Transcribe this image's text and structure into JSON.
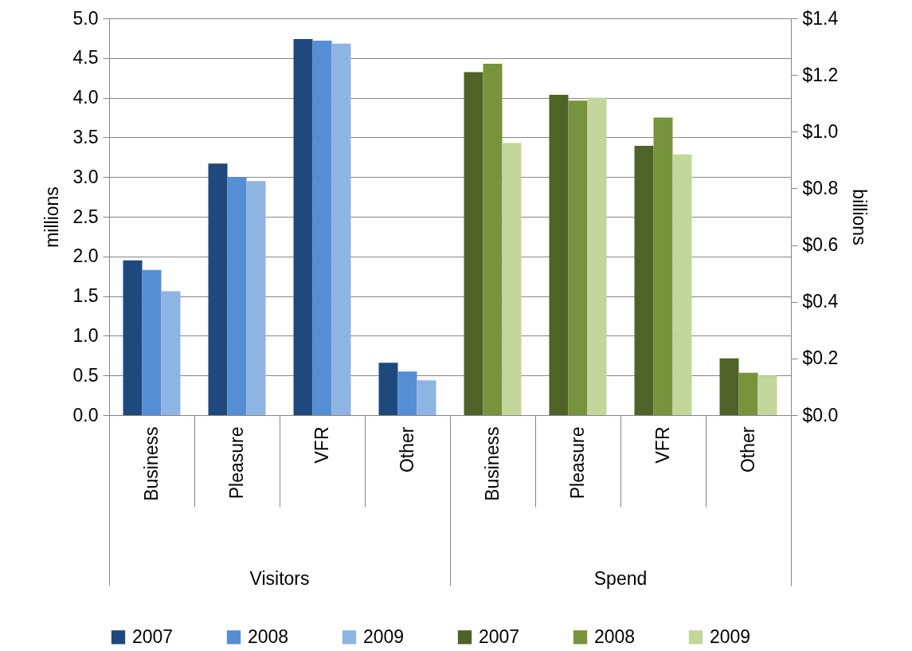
{
  "chart_data": {
    "type": "bar",
    "categories": [
      "Business",
      "Pleasure",
      "VFR",
      "Other",
      "Business",
      "Pleasure",
      "VFR",
      "Other"
    ],
    "series": [
      {
        "name": "2007",
        "color": "#1f497d",
        "values": [
          1.95,
          3.17,
          4.74,
          0.66,
          null,
          null,
          null,
          null
        ]
      },
      {
        "name": "2008",
        "color": "#558ed5",
        "values": [
          1.83,
          3.0,
          4.72,
          0.55,
          null,
          null,
          null,
          null
        ]
      },
      {
        "name": "2009",
        "color": "#8eb4e3",
        "values": [
          1.56,
          2.95,
          4.68,
          0.44,
          null,
          null,
          null,
          null
        ]
      },
      {
        "name": "2007",
        "color": "#4f6228",
        "axis": "y2",
        "values": [
          null,
          null,
          null,
          null,
          1.21,
          1.13,
          0.95,
          0.2
        ]
      },
      {
        "name": "2008",
        "color": "#77933c",
        "axis": "y2",
        "values": [
          null,
          null,
          null,
          null,
          1.24,
          1.11,
          1.05,
          0.15
        ]
      },
      {
        "name": "2009",
        "color": "#c3d69b",
        "axis": "y2",
        "values": [
          null,
          null,
          null,
          null,
          0.96,
          1.12,
          0.92,
          0.14
        ]
      }
    ],
    "ylabel": "millions",
    "y2label": "billions",
    "ylim": [
      0,
      5
    ],
    "yticks": [
      {
        "value": 0,
        "label": "0.0"
      },
      {
        "value": 0.5,
        "label": "0.5"
      },
      {
        "value": 1,
        "label": "1.0"
      },
      {
        "value": 1.5,
        "label": "1.5"
      },
      {
        "value": 2,
        "label": "2.0"
      },
      {
        "value": 2.5,
        "label": "2.5"
      },
      {
        "value": 3,
        "label": "3.0"
      },
      {
        "value": 3.5,
        "label": "3.5"
      },
      {
        "value": 4,
        "label": "4.0"
      },
      {
        "value": 4.5,
        "label": "4.5"
      },
      {
        "value": 5,
        "label": "5.0"
      }
    ],
    "y2lim": [
      0,
      1.4
    ],
    "y2ticks": [
      {
        "value": 0,
        "label": "$0.0"
      },
      {
        "value": 0.2,
        "label": "$0.2"
      },
      {
        "value": 0.4,
        "label": "$0.4"
      },
      {
        "value": 0.6,
        "label": "$0.6"
      },
      {
        "value": 0.8,
        "label": "$0.8"
      },
      {
        "value": 1.0,
        "label": "$1.0"
      },
      {
        "value": 1.2,
        "label": "$1.2"
      },
      {
        "value": 1.4,
        "label": "$1.4"
      }
    ],
    "annotations": [
      "Visitors",
      "Spend"
    ],
    "grid": "y",
    "legend": "bottom"
  }
}
